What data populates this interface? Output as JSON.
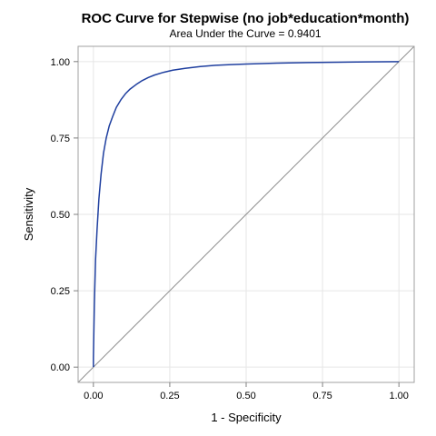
{
  "chart_data": {
    "type": "line",
    "title": "ROC Curve for Stepwise (no job*education*month)",
    "subtitle": "Area Under the Curve = 0.9401",
    "xlabel": "1 - Specificity",
    "ylabel": "Sensitivity",
    "xlim": [
      -0.05,
      1.05
    ],
    "ylim": [
      -0.05,
      1.05
    ],
    "x_ticks": [
      "0.00",
      "0.25",
      "0.50",
      "0.75",
      "1.00"
    ],
    "y_ticks": [
      "0.00",
      "0.25",
      "0.50",
      "0.75",
      "1.00"
    ],
    "grid": true,
    "series": [
      {
        "color": "#1f3f9f",
        "x": [
          0.0,
          0.0,
          0.003,
          0.007,
          0.012,
          0.018,
          0.025,
          0.033,
          0.042,
          0.052,
          0.063,
          0.075,
          0.09,
          0.105,
          0.12,
          0.14,
          0.16,
          0.18,
          0.2,
          0.23,
          0.26,
          0.3,
          0.35,
          0.4,
          0.45,
          0.5,
          0.6,
          0.7,
          0.8,
          0.9,
          1.0
        ],
        "y": [
          0.0,
          0.03,
          0.2,
          0.35,
          0.45,
          0.55,
          0.63,
          0.7,
          0.75,
          0.79,
          0.82,
          0.85,
          0.875,
          0.895,
          0.91,
          0.925,
          0.938,
          0.948,
          0.956,
          0.965,
          0.972,
          0.978,
          0.984,
          0.988,
          0.99,
          0.992,
          0.995,
          0.997,
          0.998,
          0.999,
          1.0
        ]
      },
      {
        "color": "#909090",
        "x": [
          -0.05,
          1.05
        ],
        "y": [
          -0.05,
          1.05
        ]
      }
    ]
  }
}
